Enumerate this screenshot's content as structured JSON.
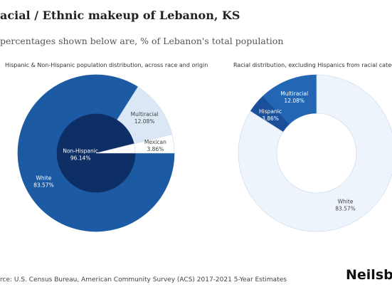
{
  "title": "acial / Ethnic makeup of Lebanon, KS",
  "subtitle": "percentages shown below are, % of Lebanon's total population",
  "source": "rce: U.S. Census Bureau, American Community Survey (ACS) 2017-2021 5-Year Estimates",
  "brand": "Neilsbe",
  "chart_data": [
    {
      "type": "nested-donut",
      "title": "Hispanic & Non-Hispanic population distribution, across race and origin",
      "rings": [
        {
          "categories": [
            "Non-Hispanic",
            null
          ],
          "values": [
            96.14,
            3.86
          ],
          "value_labels": [
            "96.14%",
            null
          ],
          "colors": [
            "#0d2f66",
            "#ffffff"
          ]
        },
        {
          "categories": [
            "White",
            "Multiracial",
            "Mexican"
          ],
          "values": [
            83.57,
            12.08,
            3.86
          ],
          "value_labels": [
            "83.57%",
            "12.08%",
            "3.86%"
          ],
          "colors": [
            "#1c5ba3",
            "#dce7f6",
            "#ffffff"
          ]
        }
      ]
    },
    {
      "type": "donut",
      "title": "Racial distribution, excluding Hispanics from racial categori",
      "categories": [
        "Multiracial",
        "Hispanic",
        "White"
      ],
      "values": [
        12.08,
        3.86,
        83.57
      ],
      "value_labels": [
        "12.08%",
        "3.86%",
        "83.57%"
      ],
      "colors": [
        "#2366b3",
        "#1a4f9a",
        "#eef4fc"
      ]
    }
  ]
}
